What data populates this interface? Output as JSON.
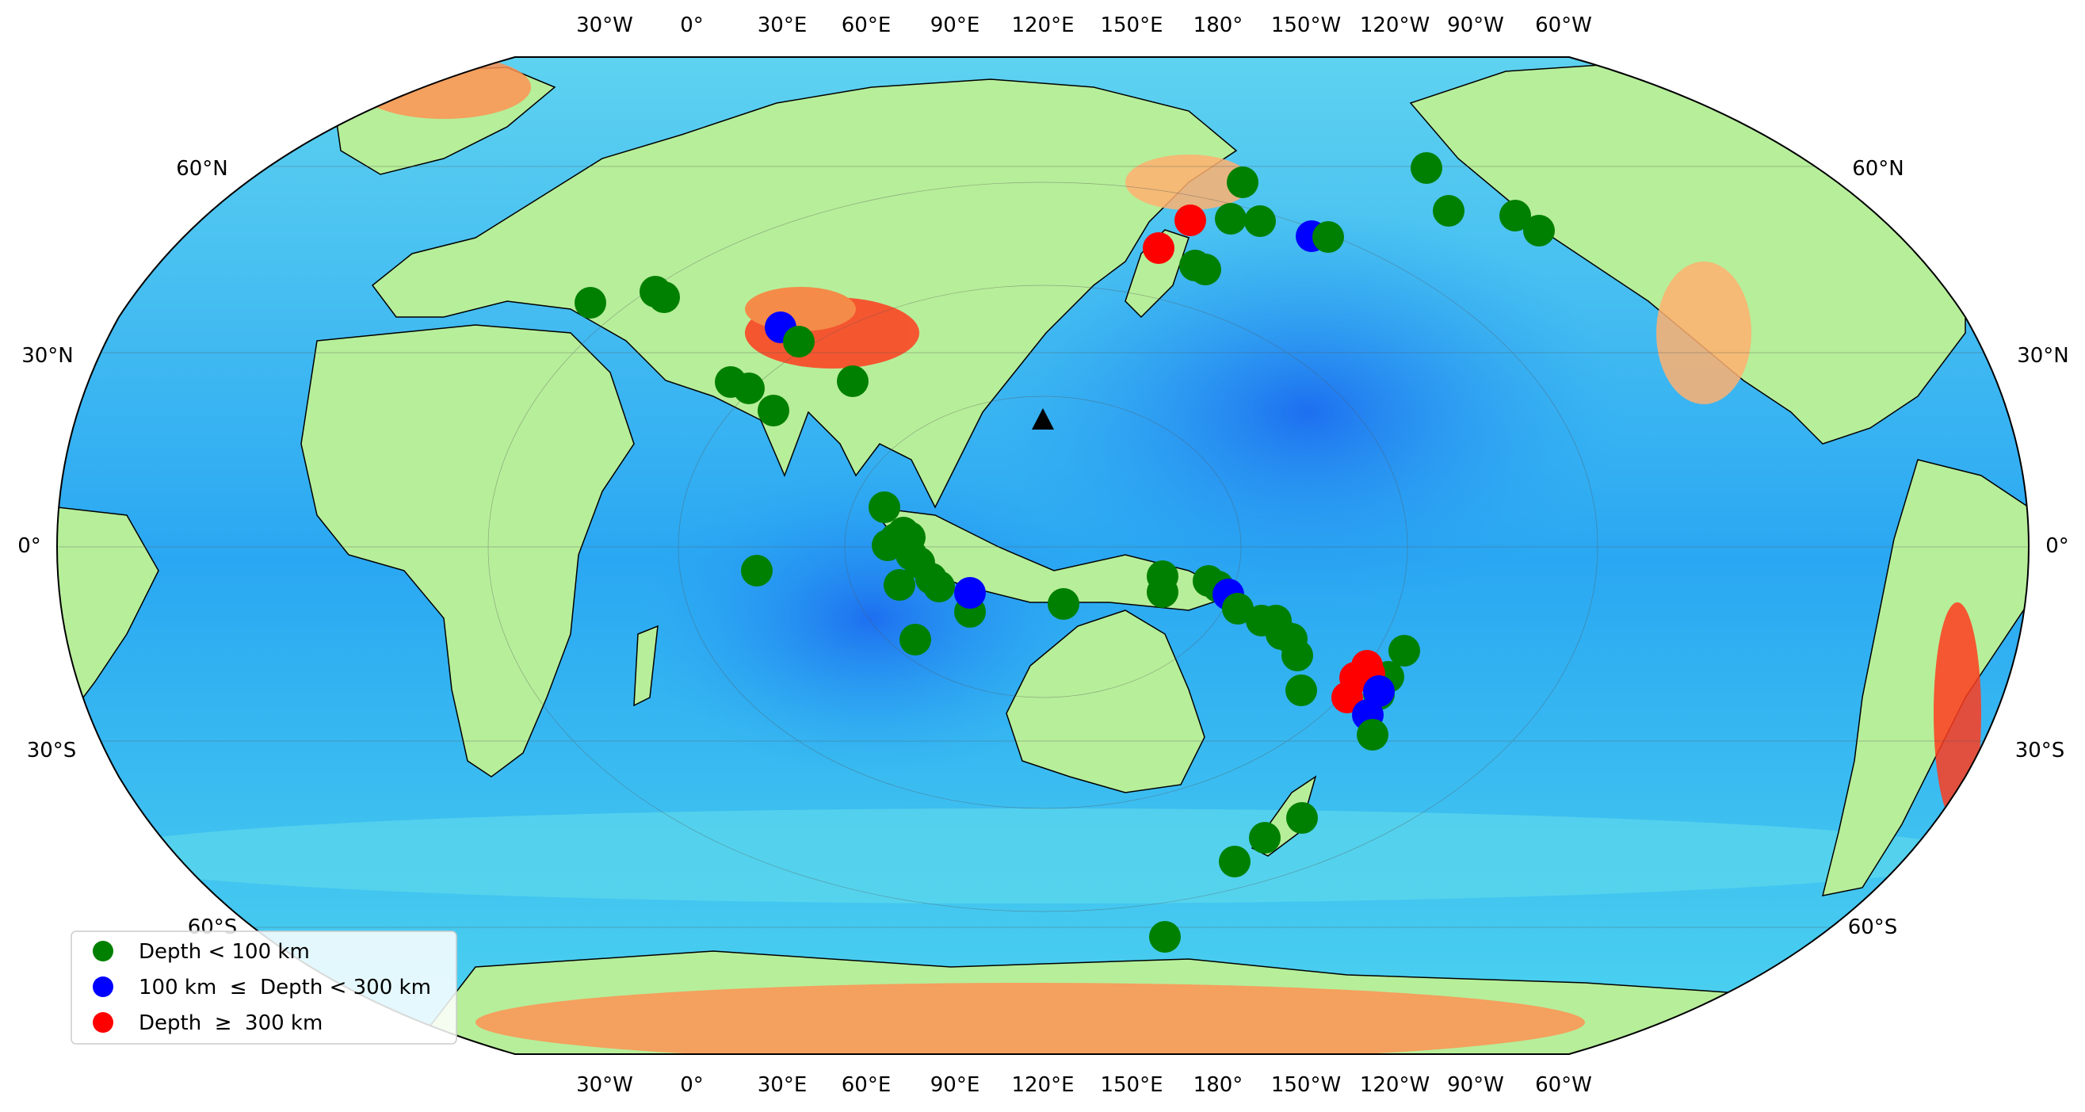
{
  "map": {
    "projection": "Robinson",
    "central_meridian": "120°E",
    "colormap": "rainbow topography/bathymetry",
    "station_marker": "black-triangle"
  },
  "top_labels": [
    "30°W",
    "0°",
    "30°E",
    "60°E",
    "90°E",
    "120°E",
    "150°E",
    "180°",
    "150°W",
    "120°W",
    "90°W",
    "60°W"
  ],
  "bottom_labels": [
    "30°W",
    "0°",
    "30°E",
    "60°E",
    "90°E",
    "120°E",
    "150°E",
    "180°",
    "150°W",
    "120°W",
    "90°W",
    "60°W"
  ],
  "left_labels": [
    "60°N",
    "30°N",
    "0°",
    "30°S",
    "60°S"
  ],
  "right_labels": [
    "60°N",
    "30°N",
    "0°",
    "30°S",
    "60°S"
  ],
  "legend": {
    "items": [
      {
        "label": "Depth < 100 km",
        "color": "#008000"
      },
      {
        "label": "100 km  ≤  Depth < 300 km",
        "color": "#0000ff"
      },
      {
        "label": "Depth  ≥  300 km",
        "color": "#ff0000"
      }
    ]
  }
}
